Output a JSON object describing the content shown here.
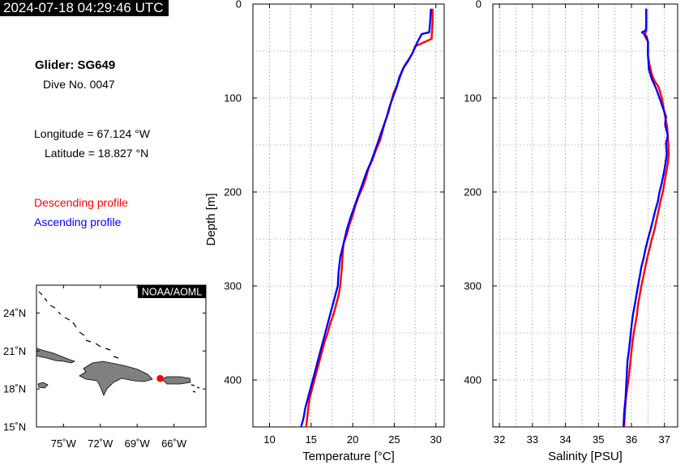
{
  "timestamp": "2024-07-18 04:29:46 UTC",
  "glider": {
    "title": "Glider: SG649",
    "dive": "Dive No. 0047",
    "longitude": "Longitude = 67.124 °W",
    "latitude": "Latitude = 18.827 °N"
  },
  "legend": {
    "descending": "Descending profile",
    "ascending": "Ascending profile"
  },
  "colors": {
    "descending": "#ff0000",
    "ascending": "#0000ff",
    "land": "#808080",
    "position_marker": "#ff0000"
  },
  "map": {
    "badge": "NOAA/AOML",
    "lat_ticks": [
      "24˚N",
      "21˚N",
      "18˚N",
      "15˚N"
    ],
    "lon_ticks": [
      "75˚W",
      "72˚W",
      "69˚W",
      "66˚W"
    ],
    "lon_range": [
      -77.2,
      -63.4
    ],
    "lat_range": [
      15,
      26.2
    ],
    "glider_position": {
      "lon": -67.124,
      "lat": 18.827
    }
  },
  "chart_data": [
    {
      "type": "line",
      "xlabel": "Temperature [°C]",
      "ylabel": "Depth [m]",
      "xlim": [
        8,
        31
      ],
      "ylim": [
        450,
        0
      ],
      "xticks": [
        10,
        15,
        20,
        25,
        30
      ],
      "yticks": [
        0,
        100,
        200,
        300,
        400
      ],
      "grid": true,
      "series": [
        {
          "key": "descending",
          "name": "Descending profile",
          "x": [
            29.6,
            29.6,
            29.5,
            29.5,
            27.5,
            27.2,
            26.8,
            26.2,
            25.8,
            25.4,
            24.9,
            24.6,
            24.3,
            23.9,
            23.6,
            23.3,
            22.8,
            22.4,
            21.9,
            21.6,
            21.2,
            20.7,
            20.3,
            20.0,
            19.6,
            19.3,
            18.9,
            18.8,
            18.7,
            18.5,
            18.3,
            18.0,
            17.7,
            17.3,
            17.0,
            16.6,
            16.3,
            16.0,
            15.7,
            15.4,
            15.1,
            14.8,
            14.6,
            14.4
          ],
          "y": [
            5,
            20,
            34,
            37,
            45,
            52,
            58,
            66,
            75,
            85,
            95,
            105,
            115,
            125,
            135,
            145,
            155,
            165,
            175,
            185,
            195,
            205,
            215,
            225,
            235,
            245,
            255,
            265,
            280,
            300,
            310,
            320,
            330,
            340,
            350,
            360,
            370,
            380,
            390,
            400,
            410,
            420,
            435,
            450
          ]
        },
        {
          "key": "ascending",
          "name": "Ascending profile",
          "x": [
            29.4,
            29.3,
            29.2,
            28.3,
            27.8,
            27.2,
            26.7,
            26.1,
            25.6,
            25.3,
            24.8,
            24.4,
            24.1,
            23.7,
            23.3,
            23.0,
            22.6,
            22.2,
            21.7,
            21.3,
            20.9,
            20.5,
            20.1,
            19.7,
            19.3,
            18.9,
            18.5,
            18.3,
            18.2,
            17.9,
            17.6,
            17.3,
            17.0,
            16.7,
            16.4,
            16.1,
            15.8,
            15.5,
            15.2,
            14.9,
            14.6,
            14.3,
            14.1,
            13.8
          ],
          "y": [
            5,
            20,
            30,
            32,
            40,
            52,
            60,
            68,
            78,
            88,
            100,
            110,
            120,
            130,
            140,
            148,
            158,
            168,
            178,
            188,
            198,
            208,
            218,
            228,
            240,
            255,
            270,
            285,
            300,
            310,
            320,
            330,
            340,
            350,
            360,
            370,
            380,
            390,
            400,
            410,
            420,
            430,
            440,
            450
          ]
        }
      ]
    },
    {
      "type": "line",
      "xlabel": "Salinity [PSU]",
      "ylabel": "",
      "xlim": [
        31.8,
        37.4
      ],
      "ylim": [
        450,
        0
      ],
      "xticks": [
        32,
        33,
        34,
        35,
        36,
        37
      ],
      "yticks": [
        0,
        100,
        200,
        300,
        400
      ],
      "grid": true,
      "series": [
        {
          "key": "descending",
          "name": "Descending profile",
          "x": [
            36.45,
            36.45,
            36.45,
            36.4,
            36.5,
            36.5,
            36.55,
            36.62,
            36.7,
            36.82,
            36.92,
            36.97,
            37.02,
            37.08,
            37.1,
            37.12,
            37.13,
            37.1,
            37.05,
            37.0,
            36.95,
            36.88,
            36.82,
            36.76,
            36.7,
            36.62,
            36.55,
            36.48,
            36.42,
            36.36,
            36.3,
            36.25,
            36.2,
            36.17,
            36.12,
            36.07,
            36.03,
            36.0,
            35.97,
            35.94,
            35.91,
            35.87,
            35.83,
            35.8,
            35.78
          ],
          "y": [
            5,
            20,
            28,
            34,
            40,
            55,
            65,
            75,
            82,
            88,
            100,
            110,
            120,
            130,
            140,
            150,
            160,
            170,
            180,
            190,
            200,
            210,
            220,
            230,
            240,
            250,
            260,
            270,
            280,
            290,
            300,
            310,
            320,
            330,
            340,
            350,
            360,
            370,
            380,
            390,
            400,
            410,
            420,
            435,
            450
          ]
        },
        {
          "key": "ascending",
          "name": "Ascending profile",
          "x": [
            36.45,
            36.45,
            36.44,
            36.32,
            36.45,
            36.5,
            36.5,
            36.53,
            36.62,
            36.75,
            36.85,
            36.95,
            37.05,
            37.02,
            37.1,
            37.05,
            37.07,
            37.03,
            36.98,
            36.92,
            36.85,
            36.8,
            36.72,
            36.65,
            36.58,
            36.5,
            36.43,
            36.37,
            36.3,
            36.25,
            36.2,
            36.15,
            36.1,
            36.05,
            36.01,
            35.98,
            35.95,
            35.92,
            35.88,
            35.85,
            35.82,
            35.78,
            35.76
          ],
          "y": [
            5,
            20,
            28,
            30,
            34,
            40,
            55,
            70,
            80,
            90,
            100,
            110,
            120,
            128,
            140,
            148,
            160,
            170,
            180,
            190,
            200,
            210,
            220,
            230,
            240,
            250,
            260,
            270,
            280,
            290,
            300,
            310,
            320,
            330,
            340,
            350,
            360,
            370,
            380,
            400,
            420,
            435,
            450
          ]
        }
      ]
    }
  ]
}
